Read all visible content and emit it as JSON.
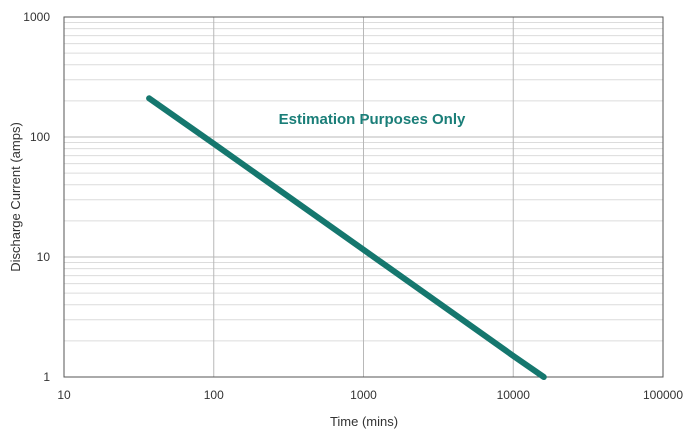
{
  "chart_data": {
    "type": "line",
    "xlabel": "Time (mins)",
    "ylabel": "Discharge Current (amps)",
    "xscale": "log",
    "yscale": "log",
    "xlim": [
      10,
      100000
    ],
    "ylim": [
      1,
      1000
    ],
    "x_ticks": [
      "10",
      "100",
      "1000",
      "10000",
      "100000"
    ],
    "y_ticks": [
      "1",
      "10",
      "100",
      "1000"
    ],
    "grid": true,
    "annotation": "Estimation Purposes Only",
    "series": [
      {
        "x": [
          37,
          100,
          1000,
          10000,
          16000
        ],
        "y": [
          210,
          88,
          11.5,
          1.5,
          1.0
        ]
      }
    ],
    "colors": {
      "line": "#15776e",
      "annotation": "#1a7e78",
      "major_grid": "#b8b8b8",
      "minor_grid": "#dcdcdc",
      "axis": "#555555"
    }
  }
}
